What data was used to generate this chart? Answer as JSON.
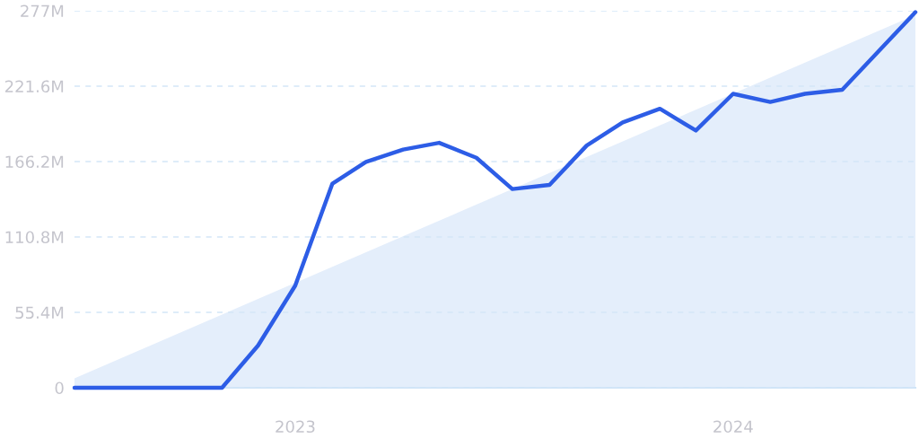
{
  "chart_data": {
    "type": "line",
    "x": [
      "2022-07",
      "2022-08",
      "2022-09",
      "2022-10",
      "2022-11",
      "2022-12",
      "2023-01",
      "2023-02",
      "2023-03",
      "2023-04",
      "2023-05",
      "2023-06",
      "2023-07",
      "2023-08",
      "2023-09",
      "2023-10",
      "2023-11",
      "2023-12",
      "2024-01",
      "2024-02",
      "2024-03",
      "2024-04",
      "2024-05",
      "2024-06"
    ],
    "series": [
      {
        "type": "area",
        "color": "#e4eefb",
        "x": [
          "2022-07",
          "2024-06"
        ],
        "values": [
          7,
          274
        ]
      },
      {
        "color": "#2d5de6",
        "values": [
          0,
          0,
          0,
          0,
          0,
          31,
          75,
          150,
          166,
          175,
          180,
          169,
          146,
          149,
          178,
          195,
          205,
          189,
          216,
          210,
          216,
          219,
          247,
          276
        ]
      }
    ],
    "xlim": [
      "2022-07",
      "2024-06"
    ],
    "xticks": [
      {
        "value": "2023-01",
        "label": "2023"
      },
      {
        "value": "2024-01",
        "label": "2024"
      }
    ],
    "ylim": [
      0,
      277
    ],
    "yticks": [
      0,
      {
        "value": 55.4,
        "label": "55.4M"
      },
      {
        "value": 110.8,
        "label": "110.8M"
      },
      {
        "value": 166.2,
        "label": "166.2M"
      },
      {
        "value": 221.6,
        "label": "221.6M"
      },
      {
        "value": 277,
        "label": "277M"
      }
    ],
    "grid": "y"
  }
}
